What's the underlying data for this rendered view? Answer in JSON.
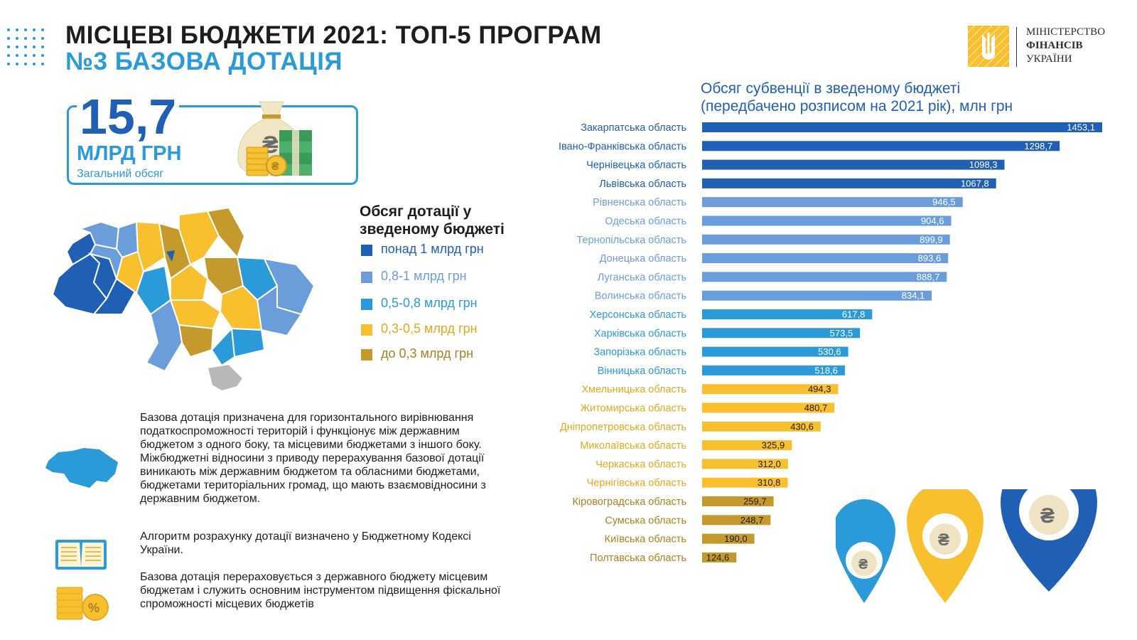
{
  "header": {
    "title": "МІСЦЕВІ БЮДЖЕТИ 2021: ТОП-5 ПРОГРАМ",
    "subtitle": "№3 БАЗОВА ДОТАЦІЯ"
  },
  "ministry": {
    "line1": "МІНІСТЕРСТВО",
    "line2": "ФІНАНСІВ",
    "line3": "УКРАЇНИ"
  },
  "total": {
    "value": "15,7",
    "unit": "МЛРД ГРН",
    "caption": "Загальний обсяг"
  },
  "legend": {
    "title": "Обсяг дотації у зведеному бюджеті",
    "items": [
      {
        "label": "понад 1 млрд грн",
        "color": "#1f5fb4"
      },
      {
        "label": "0,8-1 млрд грн",
        "color": "#6b9ddb"
      },
      {
        "label": "0,5-0,8 млрд грн",
        "color": "#2a9ad8"
      },
      {
        "label": "0,3-0,5 млрд грн",
        "color": "#f8c02f"
      },
      {
        "label": "до 0,3 млрд грн",
        "color": "#c49a2c"
      }
    ]
  },
  "info": {
    "paragraph1": "Базова  дотація призначена для горизонтального вирівнювання податкоспроможності територій і функціонує між державним бюджетом з одного боку, та місцевими бюджетами з іншого боку. Міжбюджетні відносини з приводу перерахування базової дотації виникають між державним бюджетом та обласними бюджетами, бюджетами територіальних громад, що мають взаємовідносини з державним бюджетом.",
    "paragraph2": "Алгоритм розрахунку дотації визначено у Бюджетному Кодексі України.",
    "paragraph3": "Базова дотація перераховується з державного бюджету місцевим бюджетам і служить основним інструментом підвищення фіскальної спроможності місцевих бюджетів"
  },
  "chart_data": {
    "type": "bar",
    "orientation": "horizontal",
    "title": "Обсяг субвенції в зведеному бюджеті (передбачено розписом на 2021 рік), млн грн",
    "title_lines": [
      "Обсяг субвенції в зведеному бюджеті",
      "(передбачено розписом на 2021 рік), млн грн"
    ],
    "categories": [
      "Закарпатська  область",
      "Івано-Франківська область",
      "Чернівецька область",
      "Львівська  область",
      "Рівненська область",
      "Одеська область",
      "Тернопільська область",
      "Донецька область",
      "Луганська область",
      "Волинська область",
      "Херсонська область",
      "Харківська область",
      "Запорізька область",
      "Вінницька область",
      "Хмельницька область",
      "Житомирська  область",
      "Дніпропетровська область",
      "Миколаївська область",
      "Черкаська область",
      "Чернігівська область",
      "Кіровоградська область",
      "Сумська область",
      "Київська область",
      "Полтавська область"
    ],
    "values": [
      1453.1,
      1298.7,
      1098.3,
      1067.8,
      946.5,
      904.6,
      899.9,
      893.6,
      888.7,
      834.1,
      617.8,
      573.5,
      530.6,
      518.6,
      494.3,
      480.7,
      430.6,
      325.9,
      312.0,
      310.8,
      259.7,
      248.7,
      190.0,
      124.6
    ],
    "value_labels": [
      "1453,1",
      "1298,7",
      "1098,3",
      "1067,8",
      "946,5",
      "904,6",
      "899,9",
      "893,6",
      "888,7",
      "834,1",
      "617,8",
      "573,5",
      "530,6",
      "518,6",
      "494,3",
      "480,7",
      "430,6",
      "325,9",
      "312,0",
      "310,8",
      "259,7",
      "248,7",
      "190,0",
      "124,6"
    ],
    "xlim": [
      0,
      1453.1
    ],
    "grid": false,
    "legend": "none",
    "color_groups": [
      {
        "range": "понад 1 млрд грн",
        "color": "#1f5fb4",
        "label_color": "#1f5fb4"
      },
      {
        "range": "0,8-1 млрд грн",
        "color": "#6b9ddb",
        "label_color": "#6b9ddb"
      },
      {
        "range": "0,5-0,8 млрд грн",
        "color": "#2a9ad8",
        "label_color": "#2a9ad8"
      },
      {
        "range": "0,3-0,5 млрд грн",
        "color": "#f8c02f",
        "label_color": "#e2a91c"
      },
      {
        "range": "до 0,3 млрд грн",
        "color": "#c49a2c",
        "label_color": "#a88220"
      }
    ]
  }
}
